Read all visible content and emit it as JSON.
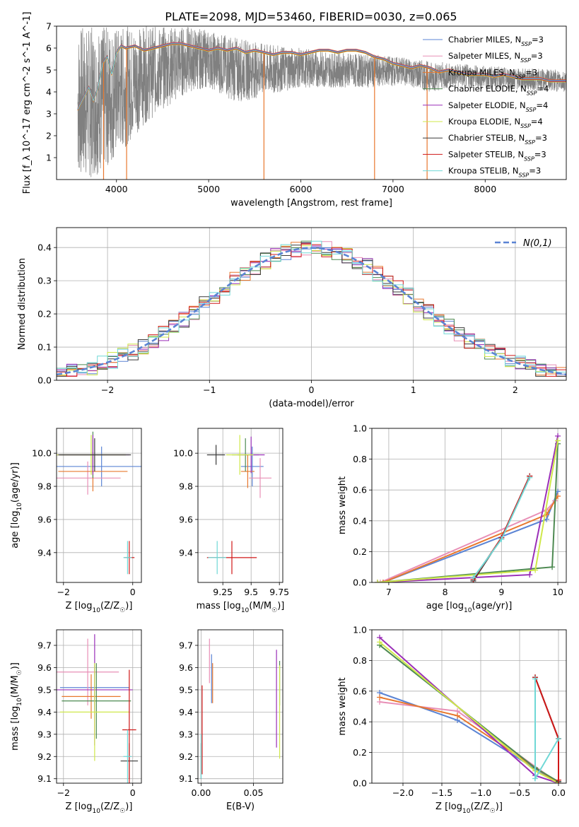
{
  "figure": {
    "title": "PLATE=2098, MJD=53460, FIBERID=0030, z=0.065"
  },
  "legend_entries": [
    {
      "label": "Chabrier MILES, N_SSP=3",
      "color": "#5b84d4"
    },
    {
      "label": "Salpeter MILES, N_SSP=3",
      "color": "#e88fb6"
    },
    {
      "label": "Kroupa MILES, N_SSP=3",
      "color": "#e8782e"
    },
    {
      "label": "Chabrier ELODIE, N_SSP=4",
      "color": "#4e8a52"
    },
    {
      "label": "Salpeter ELODIE, N_SSP=4",
      "color": "#9a2fb8"
    },
    {
      "label": "Kroupa ELODIE, N_SSP=4",
      "color": "#cfe84a"
    },
    {
      "label": "Chabrier STELIB, N_SSP=3",
      "color": "#3a3a3a"
    },
    {
      "label": "Salpeter STELIB, N_SSP=3",
      "color": "#d01818"
    },
    {
      "label": "Kroupa STELIB, N_SSP=3",
      "color": "#6fd8d6"
    }
  ],
  "chart_data": [
    {
      "id": "spectrum",
      "type": "line",
      "xlabel": "wavelength [Angstrom, rest frame]",
      "ylabel": "Flux [f_λ 10^-17 erg cm^-2 s^-1 A^-1]",
      "xlim": [
        3350,
        8880
      ],
      "ylim": [
        0,
        7
      ],
      "xticks": [
        4000,
        5000,
        6000,
        7000,
        8000
      ],
      "yticks": [
        1,
        2,
        3,
        4,
        5,
        6,
        7
      ],
      "legend_position": "right",
      "data_color": "#808080",
      "model_color": "#70d4d6",
      "data_envelope": {
        "x": [
          3580,
          3700,
          3900,
          4100,
          4300,
          4500,
          4800,
          5000,
          5300,
          5600,
          6000,
          6400,
          6800,
          7100,
          7400,
          7700,
          8000,
          8300,
          8880
        ],
        "low": [
          0.0,
          0.0,
          0.5,
          1.5,
          2.5,
          3.2,
          4.0,
          4.2,
          3.5,
          3.8,
          4.2,
          4.2,
          4.2,
          4.3,
          4.0,
          4.2,
          4.1,
          4.1,
          4.0
        ],
        "high": [
          7.0,
          7.0,
          7.0,
          7.0,
          7.0,
          7.0,
          7.0,
          6.8,
          6.5,
          6.2,
          6.0,
          5.8,
          5.7,
          5.6,
          5.4,
          5.3,
          5.2,
          5.1,
          5.0
        ]
      },
      "model_x": [
        3580,
        3650,
        3700,
        3750,
        3800,
        3850,
        3900,
        3950,
        4000,
        4050,
        4100,
        4200,
        4300,
        4400,
        4500,
        4600,
        4700,
        4800,
        4900,
        5000,
        5100,
        5200,
        5300,
        5400,
        5500,
        5600,
        5700,
        5800,
        5900,
        6000,
        6100,
        6200,
        6300,
        6400,
        6500,
        6600,
        6700,
        6800,
        6900,
        7000,
        7100,
        7200,
        7300,
        7400,
        7500,
        7600,
        7700,
        7800,
        7900,
        8000,
        8100,
        8200,
        8300,
        8400,
        8500,
        8600,
        8700,
        8880
      ],
      "model_y": [
        3.2,
        3.8,
        4.2,
        3.6,
        4.2,
        5.3,
        5.6,
        4.8,
        5.8,
        6.1,
        6.0,
        6.1,
        5.9,
        6.0,
        6.1,
        6.2,
        6.2,
        6.1,
        6.0,
        5.9,
        6.0,
        5.9,
        6.0,
        5.8,
        5.9,
        5.8,
        5.7,
        5.8,
        5.8,
        5.7,
        5.8,
        5.9,
        5.9,
        5.8,
        5.9,
        5.9,
        5.8,
        5.6,
        5.5,
        5.3,
        5.2,
        5.1,
        5.2,
        5.1,
        4.9,
        5.0,
        4.9,
        4.8,
        4.8,
        4.8,
        4.7,
        4.8,
        4.7,
        4.6,
        4.6,
        4.6,
        4.5,
        4.5
      ],
      "dips": [
        {
          "x": 3580,
          "y": 3.2
        },
        {
          "x": 3860,
          "y": 0.0
        },
        {
          "x": 4110,
          "y": 0.0
        },
        {
          "x": 5600,
          "y": 0.0
        },
        {
          "x": 6800,
          "y": 0.0
        },
        {
          "x": 7370,
          "y": 0.0
        }
      ]
    },
    {
      "id": "residuals",
      "type": "histogram",
      "xlabel": "(data-model)/error",
      "ylabel": "Normed distribution",
      "xlim": [
        -2.5,
        2.5
      ],
      "ylim": [
        0,
        0.46
      ],
      "xticks": [
        -2,
        -1,
        0,
        1,
        2
      ],
      "yticks": [
        0.0,
        0.1,
        0.2,
        0.3,
        0.4
      ],
      "grid": true,
      "legend_label": "N(0,1)",
      "legend_position": "top-right",
      "reference": {
        "mean": 0,
        "sigma": 1,
        "color": "#5b84d4"
      },
      "bin_width": 0.1,
      "bin_edges": [
        -2.5,
        2.5
      ]
    },
    {
      "id": "age-vs-Z",
      "type": "errorbar",
      "xlabel": "Z [log10(Z/Z☉)]",
      "ylabel": "age [log10(age/yr)]",
      "xlim": [
        -2.2,
        0.25
      ],
      "ylim": [
        9.22,
        10.15
      ],
      "xticks": [
        -2,
        0
      ],
      "yticks": [
        9.4,
        9.6,
        9.8,
        10.0
      ],
      "grid": true,
      "points": [
        {
          "model": 0,
          "x": -0.9,
          "y": 9.92,
          "xerr": 1.3,
          "yerr": 0.12
        },
        {
          "model": 1,
          "x": -1.3,
          "y": 9.85,
          "xerr": 0.95,
          "yerr": 0.1
        },
        {
          "model": 2,
          "x": -1.15,
          "y": 9.89,
          "xerr": 1.0,
          "yerr": 0.12
        },
        {
          "model": 3,
          "x": -1.15,
          "y": 9.99,
          "xerr": 0.95,
          "yerr": 0.14
        },
        {
          "model": 4,
          "x": -1.15,
          "y": 9.99,
          "xerr": 1.05,
          "yerr": 0.12
        },
        {
          "model": 5,
          "x": -1.2,
          "y": 9.99,
          "xerr": 1.0,
          "yerr": 0.12
        },
        {
          "model": 6,
          "x": -1.1,
          "y": 9.99,
          "xerr": 1.05,
          "yerr": 0.1
        },
        {
          "model": 7,
          "x": -0.1,
          "y": 9.37,
          "xerr": 0.15,
          "yerr": 0.1
        },
        {
          "model": 8,
          "x": -0.15,
          "y": 9.37,
          "xerr": 0.12,
          "yerr": 0.1
        }
      ]
    },
    {
      "id": "age-vs-mass",
      "type": "errorbar",
      "xlabel": "mass [log10(M/M☉)]",
      "ylabel": "",
      "xlim": [
        9.03,
        9.78
      ],
      "ylim": [
        9.22,
        10.15
      ],
      "xticks": [
        9.25,
        9.5,
        9.75
      ],
      "yticks": [
        9.4,
        9.6,
        9.8,
        10.0
      ],
      "grid": true,
      "points": [
        {
          "model": 0,
          "x": 9.51,
          "y": 9.92,
          "xerr": 0.1,
          "yerr": 0.12
        },
        {
          "model": 1,
          "x": 9.58,
          "y": 9.85,
          "xerr": 0.1,
          "yerr": 0.12
        },
        {
          "model": 2,
          "x": 9.47,
          "y": 9.89,
          "xerr": 0.06,
          "yerr": 0.1
        },
        {
          "model": 3,
          "x": 9.45,
          "y": 9.99,
          "xerr": 0.12,
          "yerr": 0.1
        },
        {
          "model": 4,
          "x": 9.5,
          "y": 9.99,
          "xerr": 0.12,
          "yerr": 0.11
        },
        {
          "model": 5,
          "x": 9.4,
          "y": 9.99,
          "xerr": 0.12,
          "yerr": 0.12
        },
        {
          "model": 6,
          "x": 9.19,
          "y": 9.99,
          "xerr": 0.08,
          "yerr": 0.06
        },
        {
          "model": 7,
          "x": 9.33,
          "y": 9.37,
          "xerr": 0.22,
          "yerr": 0.1
        },
        {
          "model": 8,
          "x": 9.2,
          "y": 9.37,
          "xerr": 0.08,
          "yerr": 0.1
        }
      ]
    },
    {
      "id": "mass-weight-vs-age",
      "type": "line",
      "xlabel": "age [log10(age/yr)]",
      "ylabel": "mass weight",
      "xlim": [
        6.7,
        10.15
      ],
      "ylim": [
        0,
        1.0
      ],
      "xticks": [
        7,
        8,
        9,
        10
      ],
      "yticks": [
        0.0,
        0.2,
        0.4,
        0.6,
        0.8,
        1.0
      ],
      "grid": true,
      "series": [
        {
          "model": 0,
          "x": [
            6.9,
            9.8,
            10.0
          ],
          "y": [
            0.0,
            0.41,
            0.59
          ]
        },
        {
          "model": 1,
          "x": [
            6.85,
            9.8,
            9.95
          ],
          "y": [
            0.0,
            0.47,
            0.53
          ]
        },
        {
          "model": 2,
          "x": [
            6.9,
            9.8,
            10.0
          ],
          "y": [
            0.0,
            0.44,
            0.56
          ]
        },
        {
          "model": 3,
          "x": [
            6.8,
            9.9,
            10.0
          ],
          "y": [
            0.0,
            0.1,
            0.9
          ]
        },
        {
          "model": 4,
          "x": [
            6.8,
            9.5,
            10.0
          ],
          "y": [
            0.0,
            0.05,
            0.95
          ]
        },
        {
          "model": 5,
          "x": [
            6.8,
            9.6,
            10.0
          ],
          "y": [
            0.0,
            0.08,
            0.92
          ]
        },
        {
          "model": 6,
          "x": [
            8.5,
            9.0,
            9.5
          ],
          "y": [
            0.01,
            0.29,
            0.69
          ]
        },
        {
          "model": 7,
          "x": [
            8.5,
            9.0,
            9.5
          ],
          "y": [
            0.02,
            0.29,
            0.69
          ]
        },
        {
          "model": 8,
          "x": [
            8.5,
            9.0,
            9.5
          ],
          "y": [
            0.03,
            0.28,
            0.68
          ]
        }
      ]
    },
    {
      "id": "mass-vs-Z",
      "type": "errorbar",
      "xlabel": "Z [log10(Z/Z☉)]",
      "ylabel": "mass [log10(M/M☉)]",
      "xlim": [
        -2.2,
        0.25
      ],
      "ylim": [
        9.08,
        9.77
      ],
      "xticks": [
        -2,
        0
      ],
      "yticks": [
        9.1,
        9.2,
        9.3,
        9.4,
        9.5,
        9.6,
        9.7
      ],
      "grid": true,
      "points": [
        {
          "model": 0,
          "x": -1.1,
          "y": 9.51,
          "xerr": 1.0,
          "yerr": 0.1
        },
        {
          "model": 1,
          "x": -1.3,
          "y": 9.58,
          "xerr": 0.9,
          "yerr": 0.15
        },
        {
          "model": 2,
          "x": -1.2,
          "y": 9.47,
          "xerr": 0.85,
          "yerr": 0.1
        },
        {
          "model": 3,
          "x": -1.05,
          "y": 9.45,
          "xerr": 1.0,
          "yerr": 0.17
        },
        {
          "model": 4,
          "x": -1.1,
          "y": 9.5,
          "xerr": 1.1,
          "yerr": 0.25
        },
        {
          "model": 5,
          "x": -1.1,
          "y": 9.4,
          "xerr": 1.0,
          "yerr": 0.22
        },
        {
          "model": 6,
          "x": -0.1,
          "y": 9.18,
          "xerr": 0.25,
          "yerr": 0.08
        },
        {
          "model": 7,
          "x": -0.1,
          "y": 9.32,
          "xerr": 0.2,
          "yerr": 0.27
        },
        {
          "model": 8,
          "x": -0.15,
          "y": 9.2,
          "xerr": 0.12,
          "yerr": 0.12
        }
      ]
    },
    {
      "id": "mass-vs-ebv",
      "type": "errorbar",
      "xlabel": "E(B-V)",
      "ylabel": "",
      "xlim": [
        -0.003,
        0.078
      ],
      "ylim": [
        9.08,
        9.77
      ],
      "xticks": [
        0.0,
        0.05
      ],
      "yticks": [
        9.1,
        9.2,
        9.3,
        9.4,
        9.5,
        9.6,
        9.7
      ],
      "grid": true,
      "points": [
        {
          "model": 0,
          "x": 0.01,
          "y": 9.55,
          "yerr": 0.11
        },
        {
          "model": 1,
          "x": 0.008,
          "y": 9.63,
          "yerr": 0.1
        },
        {
          "model": 2,
          "x": 0.011,
          "y": 9.53,
          "yerr": 0.09
        },
        {
          "model": 3,
          "x": 0.075,
          "y": 9.53,
          "yerr": 0.1
        },
        {
          "model": 4,
          "x": 0.072,
          "y": 9.46,
          "yerr": 0.22
        },
        {
          "model": 5,
          "x": 0.075,
          "y": 9.4,
          "yerr": 0.21
        },
        {
          "model": 6,
          "x": 0.0,
          "y": 9.18,
          "yerr": 0.08
        },
        {
          "model": 7,
          "x": 0.001,
          "y": 9.32,
          "yerr": 0.2
        },
        {
          "model": 8,
          "x": 0.0,
          "y": 9.2,
          "yerr": 0.1
        }
      ]
    },
    {
      "id": "mass-weight-vs-Z",
      "type": "line",
      "xlabel": "Z [log10(Z/Z☉)]",
      "ylabel": "mass weight",
      "xlim": [
        -2.4,
        0.1
      ],
      "ylim": [
        0,
        1.0
      ],
      "xticks": [
        -2.0,
        -1.5,
        -1.0,
        -0.5,
        0.0
      ],
      "yticks": [
        0.0,
        0.2,
        0.4,
        0.6,
        0.8,
        1.0
      ],
      "grid": true,
      "series": [
        {
          "model": 0,
          "x": [
            -2.3,
            -1.3,
            0.0
          ],
          "y": [
            0.59,
            0.41,
            0.0
          ]
        },
        {
          "model": 1,
          "x": [
            -2.3,
            -1.3,
            0.0
          ],
          "y": [
            0.53,
            0.47,
            0.0
          ]
        },
        {
          "model": 2,
          "x": [
            -2.3,
            -1.3,
            0.0
          ],
          "y": [
            0.56,
            0.44,
            0.0
          ]
        },
        {
          "model": 3,
          "x": [
            -2.3,
            -0.3,
            0.0
          ],
          "y": [
            0.9,
            0.1,
            0.01
          ]
        },
        {
          "model": 4,
          "x": [
            -2.3,
            -0.3,
            0.0
          ],
          "y": [
            0.95,
            0.05,
            0.0
          ]
        },
        {
          "model": 5,
          "x": [
            -2.3,
            -0.3,
            0.0
          ],
          "y": [
            0.92,
            0.08,
            0.0
          ]
        },
        {
          "model": 6,
          "x": [
            -0.3,
            0.0,
            0.0
          ],
          "y": [
            0.69,
            0.29,
            0.01
          ]
        },
        {
          "model": 7,
          "x": [
            -0.3,
            0.0,
            0.0
          ],
          "y": [
            0.69,
            0.29,
            0.02
          ]
        },
        {
          "model": 8,
          "x": [
            -0.3,
            -0.3,
            0.0
          ],
          "y": [
            0.68,
            0.03,
            0.29
          ]
        }
      ]
    }
  ]
}
